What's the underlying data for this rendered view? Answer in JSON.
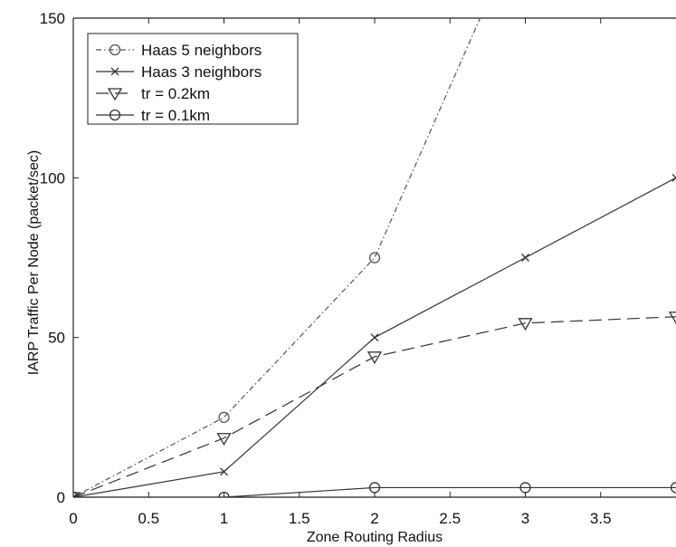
{
  "chart_data": {
    "type": "line",
    "title": "",
    "xlabel": "Zone Routing Radius",
    "ylabel": "IARP Traffic Per Node (packet/sec)",
    "xlim": [
      0,
      4
    ],
    "ylim": [
      0,
      150
    ],
    "x_ticks": [
      "0",
      "0.5",
      "1",
      "1.5",
      "2",
      "2.5",
      "3",
      "3.5"
    ],
    "y_ticks": [
      "0",
      "50",
      "100",
      "150"
    ],
    "grid": false,
    "legend_position": "top-left",
    "series": [
      {
        "name": "Haas 5 neighbors",
        "marker": "circle",
        "line_style": "dash-dot",
        "color": "#555555",
        "x": [
          0,
          1,
          2,
          2.7
        ],
        "y": [
          0,
          25,
          75,
          150
        ]
      },
      {
        "name": "Haas 3 neighbors",
        "marker": "x",
        "line_style": "solid",
        "color": "#333333",
        "x": [
          0,
          1,
          2,
          3,
          4
        ],
        "y": [
          0,
          8,
          50,
          75,
          100
        ]
      },
      {
        "name": "tr = 0.2km",
        "marker": "triangle-down",
        "line_style": "dashed",
        "color": "#333333",
        "x": [
          0,
          1,
          2,
          3,
          4
        ],
        "y": [
          0,
          18.5,
          44,
          54.5,
          56.5
        ]
      },
      {
        "name": "tr = 0.1km",
        "marker": "circle",
        "line_style": "solid",
        "color": "#333333",
        "x": [
          0,
          1,
          2,
          3,
          4
        ],
        "y": [
          0,
          0,
          3,
          3,
          3
        ]
      }
    ]
  }
}
